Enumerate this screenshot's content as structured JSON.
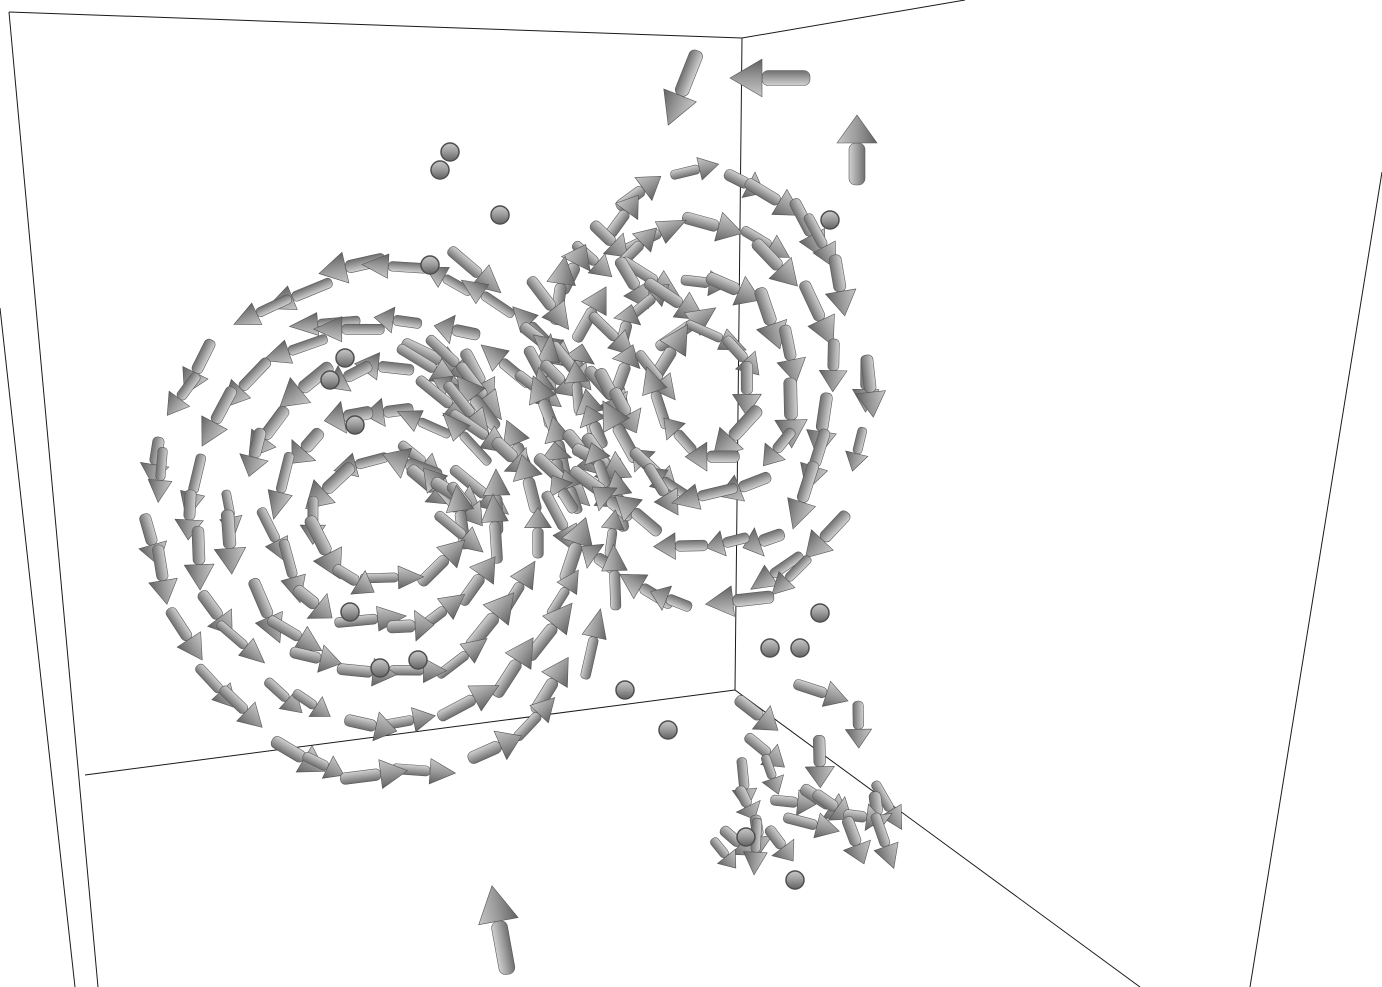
{
  "scene": {
    "kind": "3d-vector-field-glyphs",
    "glyph_shape": "arrow",
    "glyph_color": "#a6a6a6",
    "glyph_shade_color": "#6e6e6e",
    "background_color": "#ffffff",
    "bounding_box_color": "#1a1a1a",
    "structures": [
      {
        "name": "left-vortex-ring",
        "rotation": "counter-clockwise"
      },
      {
        "name": "right-vortex-ring",
        "rotation": "clockwise"
      },
      {
        "name": "lower-right-tail"
      }
    ]
  }
}
